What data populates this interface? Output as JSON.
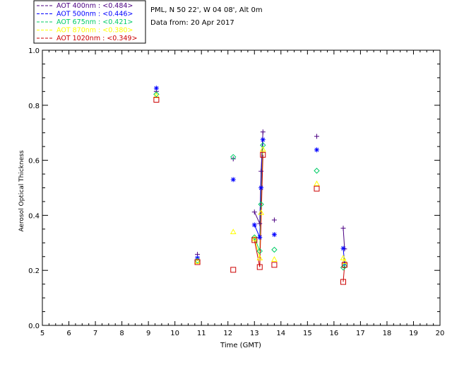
{
  "chart_data": {
    "type": "scatter",
    "title_lines": [
      "PML, N 50 22', W 04 08', Alt 0m",
      "Data from: 20 Apr 2017"
    ],
    "xlabel": "Time (GMT)",
    "ylabel": "Aerosol Optical Thickness",
    "xlim": [
      5,
      20
    ],
    "ylim": [
      0.0,
      1.0
    ],
    "x_ticks": [
      5,
      6,
      7,
      8,
      9,
      10,
      11,
      12,
      13,
      14,
      15,
      16,
      17,
      18,
      19,
      20
    ],
    "y_ticks": [
      "0.0",
      "0.2",
      "0.4",
      "0.6",
      "0.8",
      "1.0"
    ],
    "grid": false,
    "legend_position": "top-left, outside plot",
    "series": [
      {
        "name": "AOT  400nm : <0.484>",
        "color": "#4b0082",
        "marker": "plus",
        "points": [
          [
            9.3,
            0.85
          ],
          [
            10.85,
            0.258
          ],
          [
            12.2,
            0.605
          ],
          [
            13.0,
            0.412
          ],
          [
            13.2,
            0.37
          ],
          [
            13.25,
            0.56
          ],
          [
            13.32,
            0.703
          ],
          [
            13.75,
            0.383
          ],
          [
            15.35,
            0.687
          ],
          [
            16.35,
            0.353
          ],
          [
            16.4,
            0.278
          ]
        ],
        "connected": [
          [
            [
              13.0,
              0.412
            ],
            [
              13.2,
              0.37
            ],
            [
              13.25,
              0.56
            ],
            [
              13.32,
              0.703
            ]
          ],
          [
            [
              16.35,
              0.353
            ],
            [
              16.4,
              0.278
            ]
          ]
        ]
      },
      {
        "name": "AOT  500nm : <0.446>",
        "color": "#0000ff",
        "marker": "asterisk",
        "points": [
          [
            9.3,
            0.862
          ],
          [
            10.85,
            0.245
          ],
          [
            12.2,
            0.53
          ],
          [
            13.0,
            0.365
          ],
          [
            13.2,
            0.32
          ],
          [
            13.25,
            0.5
          ],
          [
            13.32,
            0.675
          ],
          [
            13.75,
            0.33
          ],
          [
            15.35,
            0.638
          ],
          [
            16.35,
            0.28
          ],
          [
            16.4,
            0.225
          ]
        ],
        "connected": [
          [
            [
              13.0,
              0.365
            ],
            [
              13.2,
              0.32
            ],
            [
              13.25,
              0.5
            ],
            [
              13.32,
              0.675
            ]
          ],
          [
            [
              16.35,
              0.28
            ],
            [
              16.4,
              0.225
            ]
          ]
        ]
      },
      {
        "name": "AOT  675nm : <0.421>",
        "color": "#00cc66",
        "marker": "diamond",
        "points": [
          [
            9.3,
            0.84
          ],
          [
            10.85,
            0.235
          ],
          [
            12.2,
            0.612
          ],
          [
            13.0,
            0.32
          ],
          [
            13.2,
            0.27
          ],
          [
            13.25,
            0.44
          ],
          [
            13.32,
            0.655
          ],
          [
            13.75,
            0.275
          ],
          [
            15.35,
            0.562
          ],
          [
            16.35,
            0.21
          ],
          [
            16.4,
            0.215
          ]
        ],
        "connected": [
          [
            [
              13.0,
              0.32
            ],
            [
              13.2,
              0.27
            ],
            [
              13.25,
              0.44
            ],
            [
              13.32,
              0.655
            ]
          ],
          [
            [
              16.35,
              0.21
            ],
            [
              16.4,
              0.215
            ]
          ]
        ]
      },
      {
        "name": "AOT  870nm : <0.380>",
        "color": "#ffff00",
        "marker": "triangle",
        "points": [
          [
            9.3,
            0.835
          ],
          [
            10.85,
            0.232
          ],
          [
            12.2,
            0.34
          ],
          [
            13.0,
            0.315
          ],
          [
            13.2,
            0.245
          ],
          [
            13.25,
            0.41
          ],
          [
            13.32,
            0.64
          ],
          [
            13.75,
            0.24
          ],
          [
            15.35,
            0.515
          ],
          [
            16.35,
            0.245
          ],
          [
            16.4,
            0.232
          ]
        ],
        "connected": [
          [
            [
              13.0,
              0.315
            ],
            [
              13.2,
              0.245
            ],
            [
              13.25,
              0.41
            ],
            [
              13.32,
              0.64
            ]
          ],
          [
            [
              16.35,
              0.245
            ],
            [
              16.4,
              0.232
            ]
          ]
        ]
      },
      {
        "name": "AOT 1020nm : <0.349>",
        "color": "#cc0000",
        "marker": "square",
        "points": [
          [
            9.3,
            0.82
          ],
          [
            10.85,
            0.23
          ],
          [
            12.2,
            0.202
          ],
          [
            13.0,
            0.31
          ],
          [
            13.2,
            0.212
          ],
          [
            13.32,
            0.62
          ],
          [
            13.75,
            0.22
          ],
          [
            15.35,
            0.497
          ],
          [
            16.35,
            0.158
          ],
          [
            16.4,
            0.22
          ]
        ],
        "connected": [
          [
            [
              13.0,
              0.31
            ],
            [
              13.2,
              0.212
            ],
            [
              13.32,
              0.62
            ]
          ],
          [
            [
              16.35,
              0.158
            ],
            [
              16.4,
              0.22
            ]
          ]
        ]
      }
    ]
  }
}
